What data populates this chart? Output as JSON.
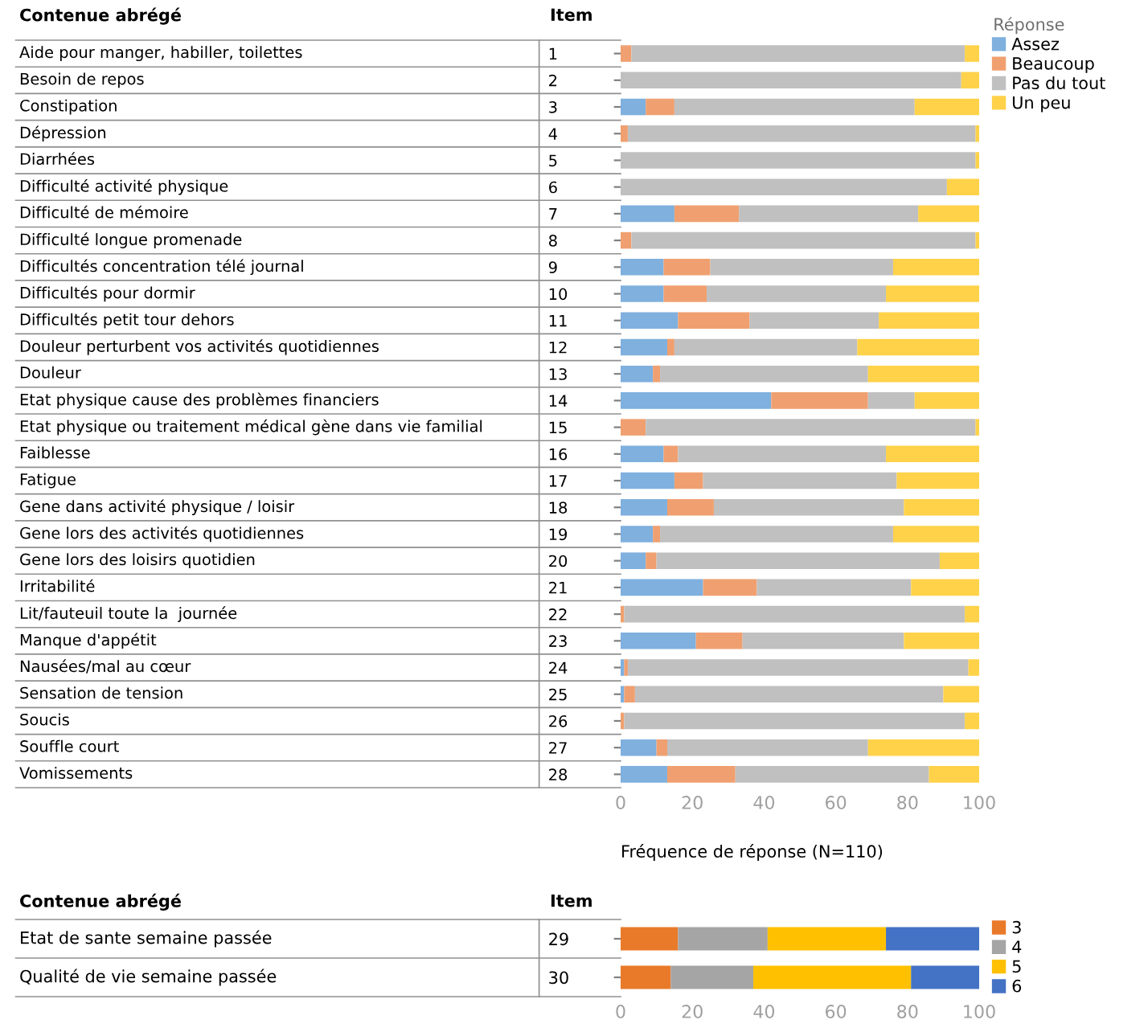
{
  "chart_data": [
    {
      "type": "bar",
      "orientation": "horizontal",
      "stacked": true,
      "ylabel": "Item",
      "y2label": "Contenue abrégé",
      "xlabel": "Fréquence de réponse (N=110)",
      "legend_title": "Réponse",
      "legend": "top right",
      "grid": false,
      "categories": [
        "1",
        "2",
        "3",
        "4",
        "5",
        "6",
        "7",
        "8",
        "9",
        "10",
        "11",
        "12",
        "13",
        "14",
        "15",
        "16",
        "17",
        "18",
        "19",
        "20",
        "21",
        "22",
        "23",
        "24",
        "25",
        "26",
        "27",
        "28"
      ],
      "annotations": [
        "Aide pour manger, habiller, toilettes",
        "Besoin de repos",
        "Constipation",
        "Dépression",
        "Diarrhées",
        "Difficulté activité physique",
        "Difficulté de mémoire",
        "Difficulté longue promenade",
        "Difficultés concentration télé journal",
        "Difficultés pour dormir",
        "Difficultés petit tour dehors",
        "Douleur perturbent vos activités quotidiennes",
        "Douleur",
        "Etat physique cause des problèmes financiers",
        "Etat physique ou traitement médical gène dans vie familial",
        "Faiblesse",
        "Fatigue",
        "Gene dans activité physique / loisir",
        "Gene lors des activités quotidiennes",
        "Gene lors des loisirs quotidien",
        "Irritabilité",
        "Lit/fauteuil toute la  journée",
        "Manque d'appétit",
        "Nausées/mal au cœur",
        "Sensation de tension",
        "Soucis",
        "Souffle court",
        "Vomissements"
      ],
      "xlim": [
        0,
        100
      ],
      "xticks": [
        0,
        20,
        40,
        60,
        80,
        100
      ],
      "series": [
        {
          "name": "Assez",
          "color": "#7fb0de",
          "values": [
            0,
            0,
            7,
            0,
            0,
            0,
            15,
            0,
            12,
            12,
            16,
            13,
            9,
            42,
            0,
            12,
            15,
            13,
            9,
            7,
            23,
            0,
            21,
            1,
            1,
            0,
            10,
            13
          ]
        },
        {
          "name": "Beaucoup",
          "color": "#f0a070",
          "values": [
            3,
            0,
            8,
            2,
            0,
            0,
            18,
            3,
            13,
            12,
            20,
            2,
            2,
            27,
            7,
            4,
            8,
            13,
            2,
            3,
            15,
            1,
            13,
            1,
            3,
            1,
            3,
            19
          ]
        },
        {
          "name": "Pas du tout",
          "color": "#c0c0c0",
          "values": [
            93,
            95,
            67,
            97,
            99,
            91,
            50,
            96,
            51,
            50,
            36,
            51,
            58,
            13,
            92,
            58,
            54,
            53,
            65,
            79,
            43,
            95,
            45,
            95,
            86,
            95,
            56,
            54
          ]
        },
        {
          "name": "Un peu",
          "color": "#ffd24a",
          "values": [
            4,
            5,
            18,
            1,
            1,
            9,
            17,
            1,
            24,
            26,
            28,
            34,
            31,
            18,
            1,
            26,
            23,
            21,
            24,
            11,
            19,
            4,
            21,
            3,
            10,
            4,
            31,
            14
          ]
        }
      ]
    },
    {
      "type": "bar",
      "orientation": "horizontal",
      "stacked": true,
      "ylabel": "Item",
      "y2label": "Contenue abrégé",
      "legend": "right",
      "grid": false,
      "categories": [
        "29",
        "30"
      ],
      "annotations": [
        "Etat de sante semaine passée",
        "Qualité de vie semaine passée"
      ],
      "xlim": [
        0,
        100
      ],
      "xticks": [
        0,
        20,
        40,
        60,
        80,
        100
      ],
      "series": [
        {
          "name": "3",
          "color": "#e97a2a",
          "values": [
            16,
            14
          ]
        },
        {
          "name": "4",
          "color": "#a5a5a5",
          "values": [
            25,
            23
          ]
        },
        {
          "name": "5",
          "color": "#ffc000",
          "values": [
            33,
            44
          ]
        },
        {
          "name": "6",
          "color": "#4472c4",
          "values": [
            26,
            19
          ]
        }
      ]
    }
  ]
}
